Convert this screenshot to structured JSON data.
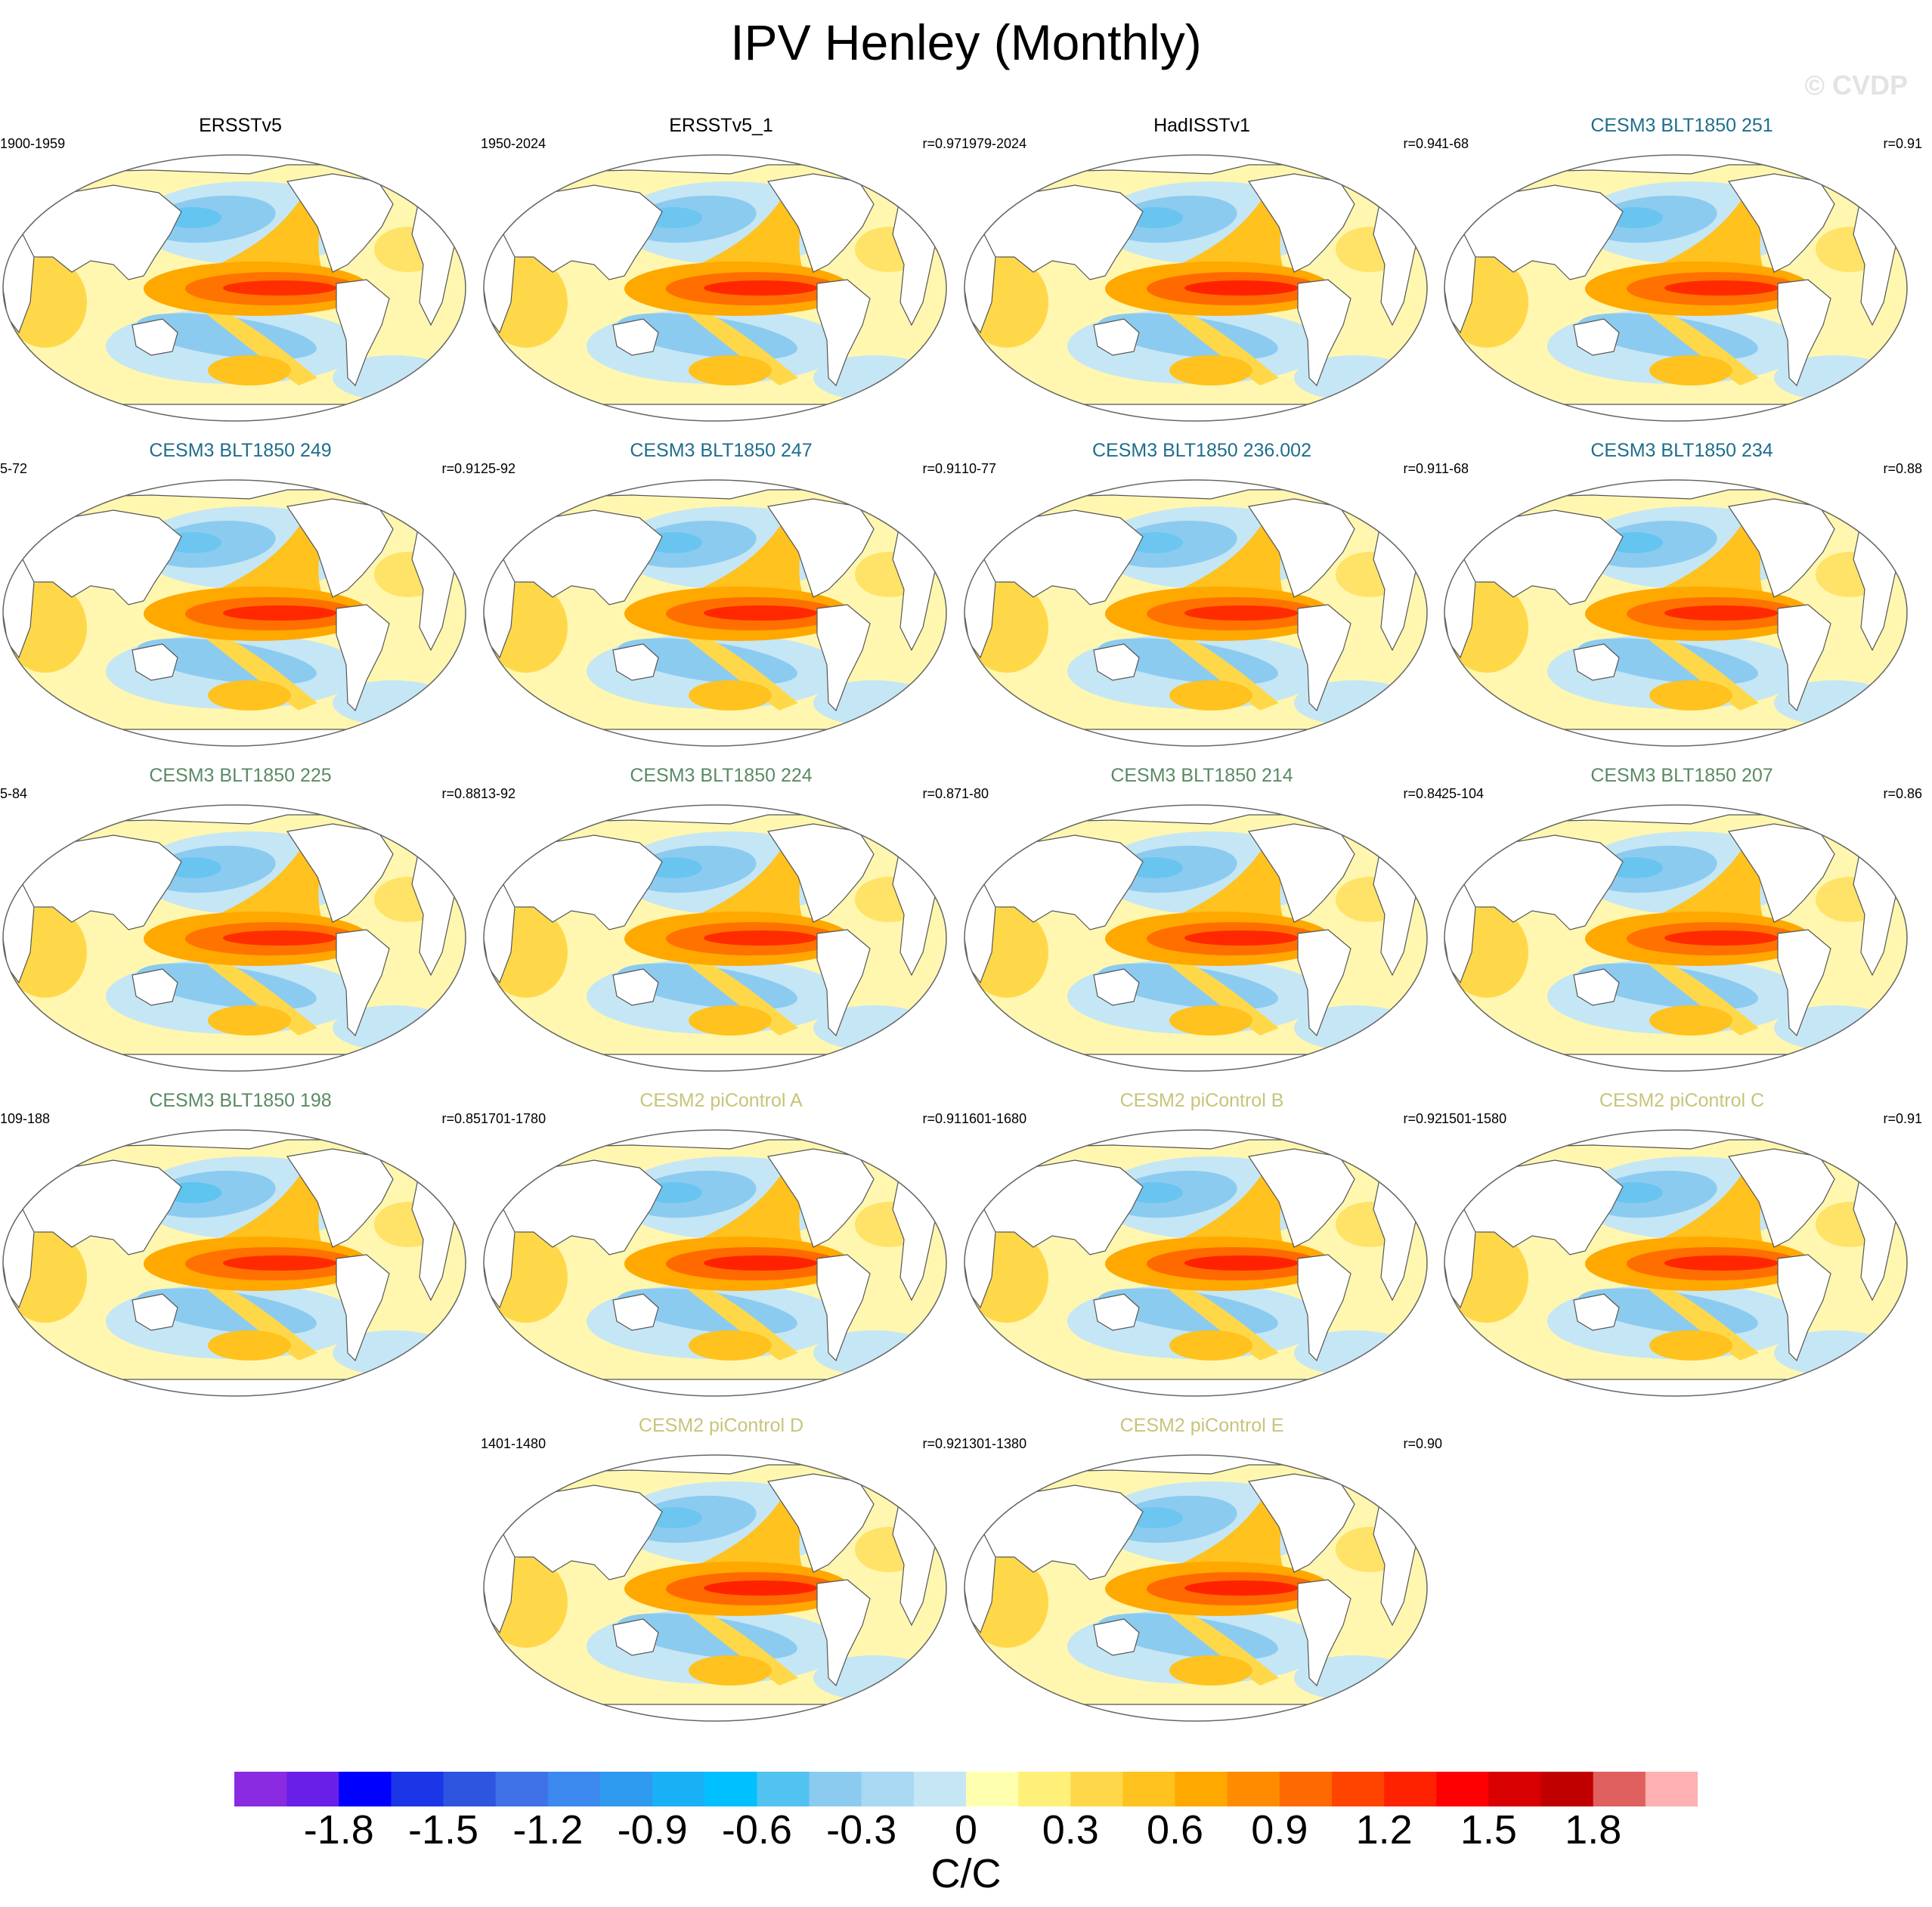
{
  "title": "IPV Henley (Monthly)",
  "watermark": "© CVDP",
  "colors": {
    "obs_title": "#000000",
    "cesm3_blue": "#1e6e8c",
    "cesm3_green": "#5a8a64",
    "cesm2_olive": "#c8c47a",
    "land": "#ffffff",
    "coast": "#555555"
  },
  "chart_data": {
    "type": "map-panels",
    "title": "IPV Henley (Monthly)",
    "units": "C/C",
    "colorbar": {
      "levels": [
        -1.8,
        -1.5,
        -1.2,
        -0.9,
        -0.6,
        -0.3,
        0,
        0.3,
        0.6,
        0.9,
        1.2,
        1.5,
        1.8
      ],
      "tick_labels": [
        "-1.8",
        "-1.5",
        "-1.2",
        "-0.9",
        "-0.6",
        "-0.3",
        "0",
        "0.3",
        "0.6",
        "0.9",
        "1.2",
        "1.5",
        "1.8"
      ],
      "range": [
        -2.1,
        2.1
      ],
      "colors": [
        "#8a2be2",
        "#6a1fe8",
        "#0000ff",
        "#1a36e6",
        "#2e55e0",
        "#3f72e6",
        "#3b88ee",
        "#2f9bf0",
        "#1ab0f5",
        "#00c0ff",
        "#52c2f0",
        "#8ccbf0",
        "#a9d8f2",
        "#c5e6f5",
        "#ffffb0",
        "#fff07a",
        "#ffd84a",
        "#ffc21e",
        "#ffa800",
        "#ff8c00",
        "#ff6a00",
        "#ff4400",
        "#ff2200",
        "#ff0000",
        "#d80000",
        "#c00000",
        "#e06060",
        "#ffb0b0"
      ]
    },
    "panels": [
      {
        "name": "ERSSTv5",
        "period": "1900-1959",
        "r": "",
        "group": "obs",
        "strength": 0.85,
        "neg": 0.7
      },
      {
        "name": "ERSSTv5_1",
        "period": "1950-2024",
        "r": "r=0.97",
        "group": "obs",
        "strength": 0.95,
        "neg": 0.55
      },
      {
        "name": "HadISSTv1",
        "period": "1979-2024",
        "r": "r=0.94",
        "group": "obs",
        "strength": 1.0,
        "neg": 0.6
      },
      {
        "name": "CESM3 BLT1850 251",
        "period": "1-68",
        "r": "r=0.91",
        "group": "cesm3_blue",
        "strength": 0.9,
        "neg": 0.6
      },
      {
        "name": "CESM3 BLT1850 249",
        "period": "5-72",
        "r": "r=0.91",
        "group": "cesm3_blue",
        "strength": 0.92,
        "neg": 0.55
      },
      {
        "name": "CESM3 BLT1850 247",
        "period": "25-92",
        "r": "r=0.91",
        "group": "cesm3_blue",
        "strength": 0.92,
        "neg": 0.6
      },
      {
        "name": "CESM3 BLT1850 236.002",
        "period": "10-77",
        "r": "r=0.91",
        "group": "cesm3_blue",
        "strength": 0.88,
        "neg": 0.55
      },
      {
        "name": "CESM3 BLT1850 234",
        "period": "1-68",
        "r": "r=0.88",
        "group": "cesm3_blue",
        "strength": 0.9,
        "neg": 0.7
      },
      {
        "name": "CESM3 BLT1850 225",
        "period": "5-84",
        "r": "r=0.88",
        "group": "cesm3_green",
        "strength": 0.85,
        "neg": 0.6
      },
      {
        "name": "CESM3 BLT1850 224",
        "period": "13-92",
        "r": "r=0.87",
        "group": "cesm3_green",
        "strength": 0.88,
        "neg": 0.6
      },
      {
        "name": "CESM3 BLT1850 214",
        "period": "1-80",
        "r": "r=0.84",
        "group": "cesm3_green",
        "strength": 0.92,
        "neg": 0.6
      },
      {
        "name": "CESM3 BLT1850 207",
        "period": "25-104",
        "r": "r=0.86",
        "group": "cesm3_green",
        "strength": 0.9,
        "neg": 0.6
      },
      {
        "name": "CESM3 BLT1850 198",
        "period": "109-188",
        "r": "r=0.85",
        "group": "cesm3_green",
        "strength": 0.9,
        "neg": 0.8
      },
      {
        "name": "CESM2 piControl A",
        "period": "1701-1780",
        "r": "r=0.91",
        "group": "cesm2_olive",
        "strength": 1.0,
        "neg": 0.6
      },
      {
        "name": "CESM2 piControl B",
        "period": "1601-1680",
        "r": "r=0.92",
        "group": "cesm2_olive",
        "strength": 1.0,
        "neg": 0.6
      },
      {
        "name": "CESM2 piControl C",
        "period": "1501-1580",
        "r": "r=0.91",
        "group": "cesm2_olive",
        "strength": 0.95,
        "neg": 0.6
      },
      {
        "name": "CESM2 piControl D",
        "period": "1401-1480",
        "r": "r=0.92",
        "group": "cesm2_olive",
        "strength": 1.0,
        "neg": 0.55
      },
      {
        "name": "CESM2 piControl E",
        "period": "1301-1380",
        "r": "r=0.90",
        "group": "cesm2_olive",
        "strength": 1.0,
        "neg": 0.55
      }
    ]
  }
}
